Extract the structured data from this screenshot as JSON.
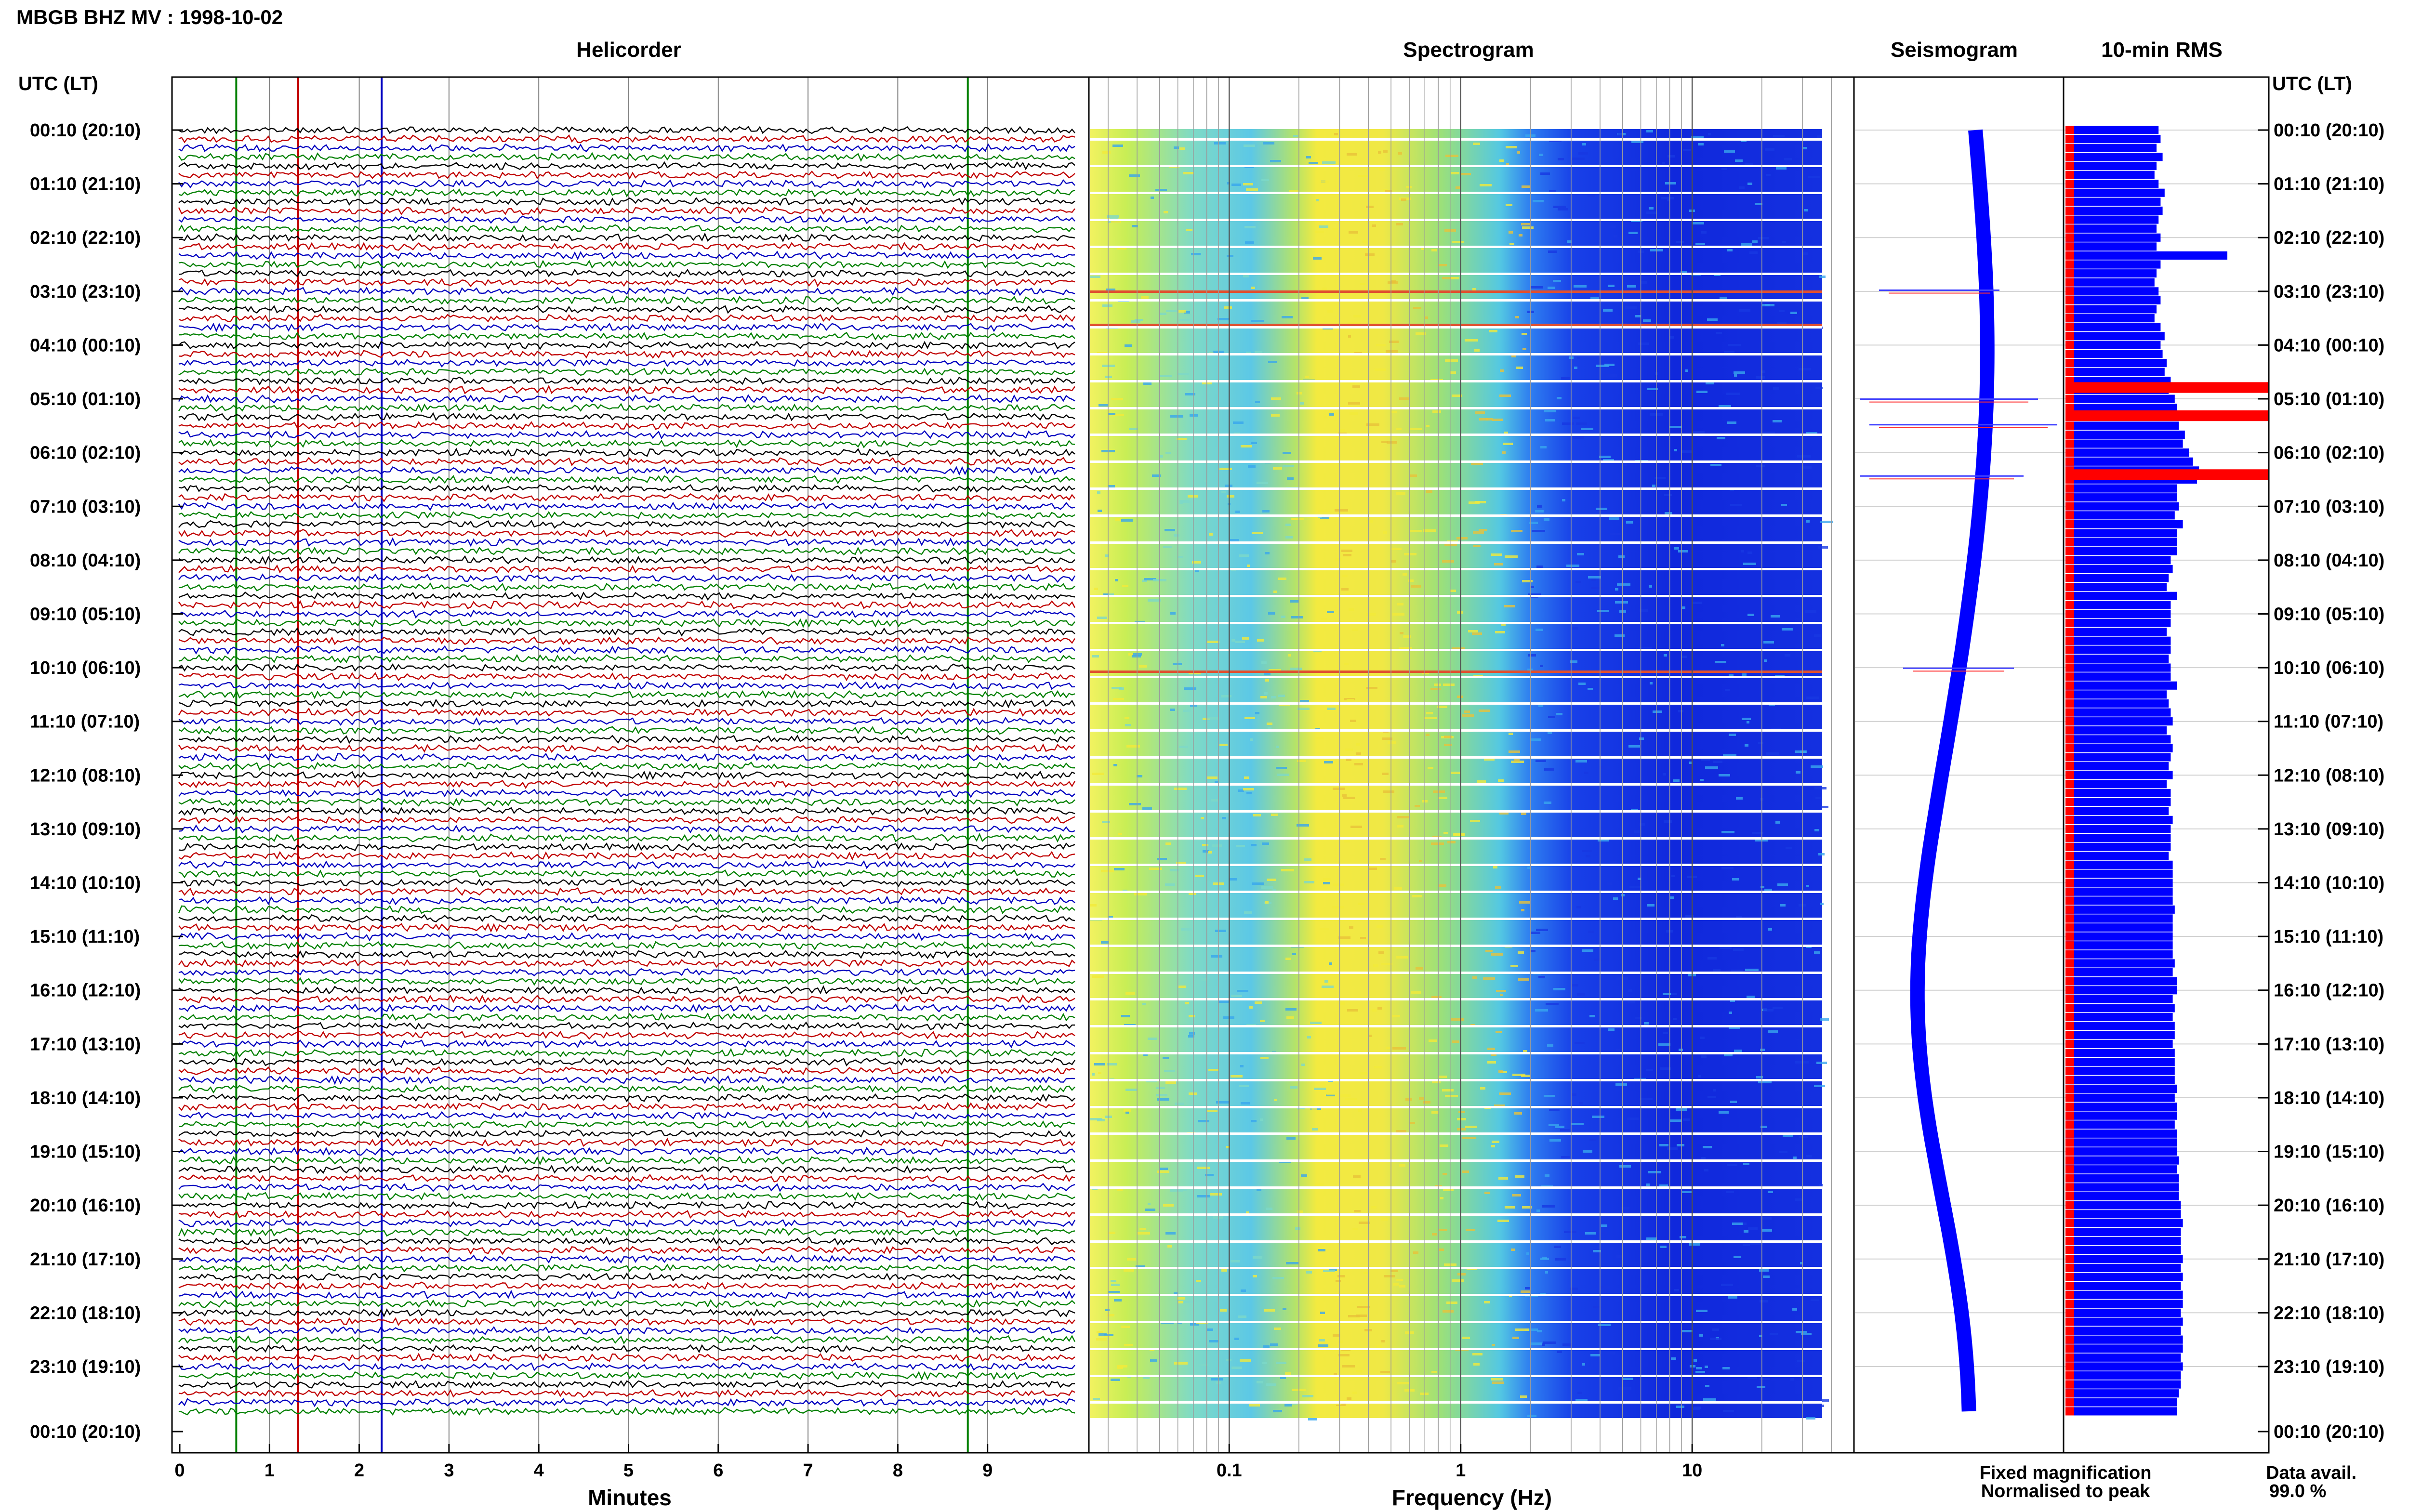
{
  "title": "MBGB BHZ MV : 1998-10-02",
  "chart_data": [
    {
      "type": "line",
      "name": "helicorder",
      "title": "Helicorder",
      "xlabel": "Minutes",
      "x_ticks": [
        "0",
        "1",
        "2",
        "3",
        "4",
        "5",
        "6",
        "7",
        "8",
        "9"
      ],
      "xlim": [
        0,
        10
      ],
      "y_axis_label": "UTC (LT)",
      "rows": 144,
      "trace_colors": [
        "#000000",
        "#c00000",
        "#0000c0",
        "#008000"
      ],
      "marker_colors": [
        "#008000",
        "#c00000",
        "#0000c0",
        "#008000"
      ],
      "markers_minutes": [
        0.63,
        1.32,
        2.25,
        8.78
      ]
    },
    {
      "type": "heatmap",
      "name": "spectrogram",
      "title": "Spectrogram",
      "xlabel": "Frequency (Hz)",
      "x_scale": "log",
      "x_ticks": [
        "0.1",
        "1",
        "10"
      ],
      "xlim": [
        0.025,
        50
      ]
    },
    {
      "type": "line",
      "name": "seismogram",
      "title": "Seismogram"
    },
    {
      "type": "bar",
      "name": "rms",
      "title": "10-min RMS",
      "values_relative": [
        0.46,
        0.47,
        0.45,
        0.48,
        0.45,
        0.44,
        0.46,
        0.49,
        0.47,
        0.48,
        0.46,
        0.45,
        0.47,
        0.45,
        0.8,
        0.47,
        0.45,
        0.44,
        0.46,
        0.47,
        0.45,
        0.44,
        0.47,
        0.49,
        0.47,
        0.48,
        0.5,
        0.49,
        0.52,
        0.51,
        0.54,
        0.55,
        0.57,
        0.56,
        0.59,
        0.58,
        0.61,
        0.63,
        0.66,
        0.65,
        0.55,
        0.55,
        0.56,
        0.54,
        0.58,
        0.55,
        0.55,
        0.55,
        0.52,
        0.53,
        0.51,
        0.5,
        0.55,
        0.52,
        0.52,
        0.52,
        0.5,
        0.52,
        0.52,
        0.51,
        0.52,
        0.52,
        0.55,
        0.5,
        0.51,
        0.52,
        0.53,
        0.5,
        0.52,
        0.53,
        0.52,
        0.51,
        0.53,
        0.5,
        0.52,
        0.52,
        0.51,
        0.53,
        0.52,
        0.52,
        0.52,
        0.51,
        0.53,
        0.53,
        0.53,
        0.53,
        0.53,
        0.54,
        0.53,
        0.53,
        0.53,
        0.53,
        0.53,
        0.54,
        0.53,
        0.55,
        0.55,
        0.53,
        0.54,
        0.53,
        0.54,
        0.54,
        0.53,
        0.54,
        0.54,
        0.54,
        0.54,
        0.55,
        0.54,
        0.55,
        0.55,
        0.54,
        0.55,
        0.55,
        0.55,
        0.56,
        0.55,
        0.56,
        0.56,
        0.56,
        0.57,
        0.57,
        0.58,
        0.57,
        0.57,
        0.57,
        0.58,
        0.57,
        0.58,
        0.57,
        0.58,
        0.58,
        0.57,
        0.58,
        0.57,
        0.58,
        0.58,
        0.57,
        0.58,
        0.57,
        0.57,
        0.56,
        0.55,
        0.55
      ],
      "color_fixed": "#0000ff",
      "color_normalised": "#ff0000"
    }
  ],
  "time_labels": [
    "00:10 (20:10)",
    "01:10 (21:10)",
    "02:10 (22:10)",
    "03:10 (23:10)",
    "04:10 (00:10)",
    "05:10 (01:10)",
    "06:10 (02:10)",
    "07:10 (03:10)",
    "08:10 (04:10)",
    "09:10 (05:10)",
    "10:10 (06:10)",
    "11:10 (07:10)",
    "12:10 (08:10)",
    "13:10 (09:10)",
    "14:10 (10:10)",
    "15:10 (11:10)",
    "16:10 (12:10)",
    "17:10 (13:10)",
    "18:10 (14:10)",
    "19:10 (15:10)",
    "20:10 (16:10)",
    "21:10 (17:10)",
    "22:10 (18:10)",
    "23:10 (19:10)",
    "00:10 (20:10)"
  ],
  "axis_label_left": "UTC (LT)",
  "axis_label_right": "UTC (LT)",
  "legend": {
    "fixed": "Fixed magnification",
    "normalised": "Normalised to peak",
    "fixed_color": "#0000ff",
    "normalised_color": "#ff0000"
  },
  "data_avail_label": "Data avail.",
  "data_avail_value": "99.0 %"
}
